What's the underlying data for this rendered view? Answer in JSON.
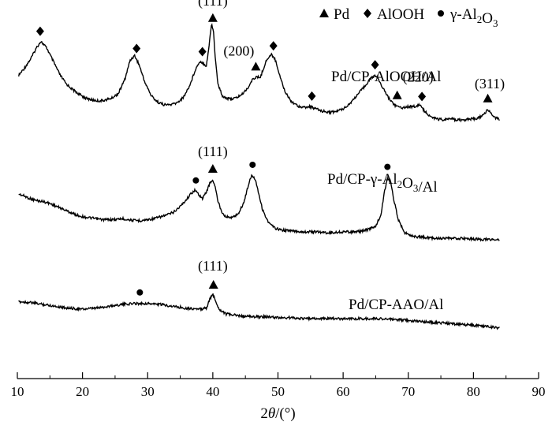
{
  "chart_data": {
    "type": "line",
    "xlabel": "2θ/(°)",
    "xlim": [
      10,
      90
    ],
    "xticks": [
      10,
      20,
      30,
      40,
      50,
      60,
      70,
      80,
      90
    ],
    "legend": {
      "position": "top-right",
      "entries": [
        {
          "marker": "triangle",
          "text": "Pd"
        },
        {
          "marker": "diamond",
          "text": "AlOOH"
        },
        {
          "marker": "circle",
          "text": "γ-Al2O3"
        }
      ]
    },
    "series": [
      {
        "name": "Pd/CP-AlOOH/Al",
        "x": [
          10.2,
          11,
          12,
          13,
          13.6,
          14.5,
          15.5,
          16.5,
          17.5,
          18.5,
          19.5,
          20.5,
          21.5,
          22.5,
          23.5,
          24.5,
          25.5,
          26.5,
          27.3,
          28,
          28.7,
          29.5,
          30.5,
          31.5,
          32.5,
          33.5,
          34.5,
          35.5,
          36.5,
          37.3,
          38,
          38.5,
          39,
          39.4,
          39.8,
          40.1,
          40.4,
          40.8,
          41.5,
          42.5,
          43.5,
          44.5,
          45.5,
          46.2,
          46.8,
          47.3,
          47.8,
          48.3,
          49,
          49.5,
          50.2,
          51,
          52,
          53,
          54,
          55,
          56,
          57,
          58,
          59,
          60,
          61,
          62,
          63,
          64,
          64.8,
          65.3,
          66,
          67,
          68,
          69,
          70,
          71,
          71.8,
          72.5,
          73.5,
          74.5,
          75.5,
          76.5,
          77.5,
          78.5,
          79.5,
          80.5,
          81.5,
          82.2,
          83,
          84
        ],
        "values": [
          0.62,
          0.69,
          0.79,
          0.92,
          0.98,
          0.91,
          0.77,
          0.63,
          0.53,
          0.47,
          0.42,
          0.38,
          0.36,
          0.35,
          0.36,
          0.38,
          0.43,
          0.58,
          0.78,
          0.83,
          0.73,
          0.56,
          0.41,
          0.34,
          0.31,
          0.31,
          0.33,
          0.39,
          0.52,
          0.68,
          0.77,
          0.75,
          0.72,
          0.92,
          1.17,
          1.08,
          0.78,
          0.52,
          0.4,
          0.37,
          0.38,
          0.42,
          0.5,
          0.59,
          0.6,
          0.6,
          0.7,
          0.79,
          0.84,
          0.8,
          0.64,
          0.46,
          0.35,
          0.3,
          0.28,
          0.29,
          0.26,
          0.24,
          0.23,
          0.24,
          0.27,
          0.32,
          0.4,
          0.48,
          0.57,
          0.62,
          0.6,
          0.5,
          0.38,
          0.3,
          0.28,
          0.29,
          0.29,
          0.31,
          0.24,
          0.18,
          0.16,
          0.15,
          0.16,
          0.15,
          0.15,
          0.16,
          0.16,
          0.2,
          0.26,
          0.19,
          0.15
        ]
      },
      {
        "name": "Pd/CP-γ-Al2O3/Al",
        "x": [
          10.2,
          11,
          12,
          13,
          14,
          15,
          16,
          17,
          18,
          19,
          20,
          21,
          22,
          23,
          24,
          25,
          26,
          27,
          28,
          29,
          30,
          31,
          32,
          33,
          34,
          35,
          35.8,
          36.6,
          37.2,
          37.8,
          38.4,
          39,
          39.5,
          40,
          40.4,
          40.8,
          41.4,
          42,
          43,
          44,
          44.8,
          45.5,
          46,
          46.5,
          47,
          47.6,
          48.5,
          49.5,
          50.5,
          52,
          54,
          56,
          58,
          60,
          62,
          63,
          64,
          65,
          65.8,
          66.3,
          66.8,
          67.3,
          67.8,
          68.5,
          69.5,
          71,
          73,
          75,
          77,
          79,
          81,
          83,
          84
        ],
        "values": [
          0.6,
          0.58,
          0.55,
          0.53,
          0.52,
          0.5,
          0.47,
          0.44,
          0.41,
          0.38,
          0.36,
          0.35,
          0.34,
          0.33,
          0.33,
          0.33,
          0.34,
          0.33,
          0.32,
          0.32,
          0.33,
          0.34,
          0.36,
          0.38,
          0.41,
          0.47,
          0.53,
          0.6,
          0.64,
          0.6,
          0.55,
          0.62,
          0.71,
          0.75,
          0.66,
          0.52,
          0.41,
          0.36,
          0.35,
          0.4,
          0.52,
          0.71,
          0.8,
          0.76,
          0.62,
          0.44,
          0.3,
          0.24,
          0.22,
          0.21,
          0.2,
          0.2,
          0.19,
          0.2,
          0.2,
          0.21,
          0.23,
          0.26,
          0.38,
          0.61,
          0.77,
          0.73,
          0.53,
          0.32,
          0.19,
          0.15,
          0.14,
          0.13,
          0.13,
          0.13,
          0.12,
          0.12,
          0.12
        ]
      },
      {
        "name": "Pd/CP-AAO/Al",
        "x": [
          10.2,
          12,
          14,
          16,
          18,
          20,
          22,
          24,
          26,
          28,
          30,
          32,
          34,
          36,
          38,
          39,
          39.5,
          40,
          40.5,
          41,
          42,
          44,
          46,
          48,
          50,
          52,
          54,
          56,
          58,
          60,
          62,
          64,
          66,
          68,
          70,
          72,
          74,
          76,
          78,
          80,
          82,
          84
        ],
        "values": [
          0.38,
          0.37,
          0.35,
          0.33,
          0.31,
          0.3,
          0.31,
          0.33,
          0.35,
          0.36,
          0.36,
          0.35,
          0.33,
          0.31,
          0.3,
          0.31,
          0.4,
          0.46,
          0.37,
          0.3,
          0.25,
          0.23,
          0.22,
          0.22,
          0.21,
          0.21,
          0.2,
          0.2,
          0.2,
          0.2,
          0.2,
          0.2,
          0.2,
          0.19,
          0.18,
          0.17,
          0.16,
          0.15,
          0.14,
          0.13,
          0.12,
          0.1
        ]
      }
    ],
    "markers": [
      {
        "series": 0,
        "type": "diamond",
        "x": 13.5
      },
      {
        "series": 0,
        "type": "diamond",
        "x": 28.3
      },
      {
        "series": 0,
        "type": "diamond",
        "x": 38.4
      },
      {
        "series": 0,
        "type": "triangle",
        "x": 40.0
      },
      {
        "series": 0,
        "type": "triangle",
        "x": 46.6
      },
      {
        "series": 0,
        "type": "diamond",
        "x": 49.3
      },
      {
        "series": 0,
        "type": "diamond",
        "x": 55.2
      },
      {
        "series": 0,
        "type": "diamond",
        "x": 64.9
      },
      {
        "series": 0,
        "type": "triangle",
        "x": 68.3
      },
      {
        "series": 0,
        "type": "diamond",
        "x": 72.1
      },
      {
        "series": 0,
        "type": "triangle",
        "x": 82.2
      },
      {
        "series": 1,
        "type": "circle",
        "x": 37.4
      },
      {
        "series": 1,
        "type": "triangle",
        "x": 40.0
      },
      {
        "series": 1,
        "type": "circle",
        "x": 46.1
      },
      {
        "series": 1,
        "type": "circle",
        "x": 66.8
      },
      {
        "series": 2,
        "type": "circle",
        "x": 28.8
      },
      {
        "series": 2,
        "type": "triangle",
        "x": 40.1
      }
    ],
    "annotations": [
      {
        "series": 0,
        "text": "(111)",
        "x": 40.0
      },
      {
        "series": 0,
        "text": "(200)",
        "x": 44.0
      },
      {
        "series": 0,
        "text": "(220)",
        "x": 71.5
      },
      {
        "series": 0,
        "text": "(311)",
        "x": 82.5
      },
      {
        "series": 1,
        "text": "(111)",
        "x": 40.0
      },
      {
        "series": 2,
        "text": "(111)",
        "x": 40.0
      }
    ],
    "series_labels": [
      {
        "series": 0,
        "text": "Pd/CP-AlOOH/Al"
      },
      {
        "series": 1,
        "text": "Pd/CP-γ-Al2O3/Al"
      },
      {
        "series": 2,
        "text": "Pd/CP-AAO/Al"
      }
    ]
  }
}
